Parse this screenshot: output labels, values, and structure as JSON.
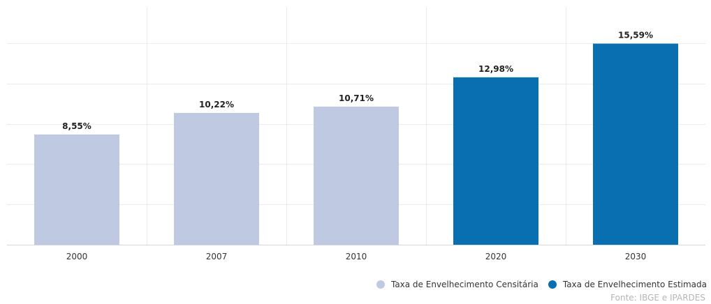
{
  "chart_data": {
    "type": "bar",
    "title": "",
    "xlabel": "",
    "ylabel": "",
    "categories": [
      "2000",
      "2007",
      "2010",
      "2020",
      "2030"
    ],
    "values": [
      8.55,
      10.22,
      10.71,
      12.98,
      15.59
    ],
    "value_labels": [
      "8,55%",
      "10,22%",
      "10,71%",
      "12,98%",
      "15,59%"
    ],
    "series_index": [
      0,
      0,
      0,
      1,
      1
    ],
    "series": [
      {
        "name": "Taxa de Envelhecimento Censitária",
        "color": "#bfc9e2"
      },
      {
        "name": "Taxa de Envelhecimento Estimada",
        "color": "#0a6fb0"
      }
    ],
    "ylim": [
      0,
      18
    ],
    "grid": true,
    "legend_position": "bottom-right",
    "source": "Fonte: IBGE e IPARDES"
  }
}
